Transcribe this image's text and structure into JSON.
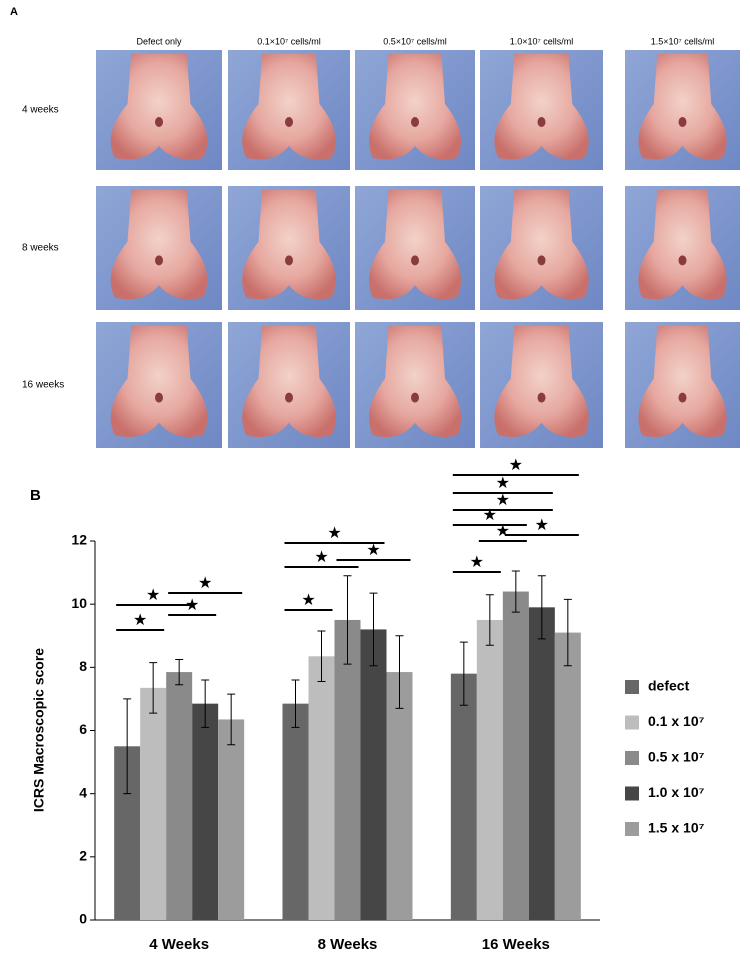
{
  "panel_a": {
    "label": "A",
    "columns": [
      "Defect only",
      "0.1×10⁷ cells/ml",
      "0.5×10⁷ cells/ml",
      "1.0×10⁷ cells/ml",
      "1.5×10⁷ cells/ml"
    ],
    "rows": [
      "4 weeks",
      "8 weeks",
      "16 weeks"
    ]
  },
  "chart_data": {
    "type": "bar",
    "panel_label": "B",
    "y_label": "ICRS Macroscopic score",
    "categories": [
      "4 Weeks",
      "8 Weeks",
      "16 Weeks"
    ],
    "series": [
      {
        "name": "defect",
        "color": "#676767",
        "values": [
          5.5,
          6.85,
          7.8
        ],
        "errors": [
          1.5,
          0.75,
          1.0
        ]
      },
      {
        "name": "0.1 x 10⁷",
        "color": "#bdbdbd",
        "values": [
          7.35,
          8.35,
          9.5
        ],
        "errors": [
          0.8,
          0.8,
          0.8
        ]
      },
      {
        "name": "0.5 x 10⁷",
        "color": "#8a8a8a",
        "values": [
          7.85,
          9.5,
          10.4
        ],
        "errors": [
          0.4,
          1.4,
          0.65
        ]
      },
      {
        "name": "1.0 x 10⁷",
        "color": "#464646",
        "values": [
          6.85,
          9.2,
          9.9
        ],
        "errors": [
          0.75,
          1.15,
          1.0
        ]
      },
      {
        "name": "1.5 x 10⁷",
        "color": "#9c9c9c",
        "values": [
          6.35,
          7.85,
          9.1
        ],
        "errors": [
          0.8,
          1.15,
          1.05
        ]
      }
    ],
    "ylim": [
      0,
      12
    ],
    "yticks": [
      0,
      2,
      4,
      6,
      8,
      10,
      12
    ],
    "legend": "right",
    "annotations": [
      {
        "text": "★",
        "group": "4 Weeks",
        "between": [
          "defect",
          "0.1 x 10⁷"
        ]
      },
      {
        "text": "★",
        "group": "4 Weeks",
        "between": [
          "defect",
          "0.5 x 10⁷"
        ]
      },
      {
        "text": "★",
        "group": "4 Weeks",
        "between": [
          "0.5 x 10⁷",
          "1.0 x 10⁷"
        ]
      },
      {
        "text": "★",
        "group": "4 Weeks",
        "between": [
          "0.5 x 10⁷",
          "1.5 x 10⁷"
        ]
      },
      {
        "text": "★",
        "group": "8 Weeks",
        "between": [
          "defect",
          "0.1 x 10⁷"
        ]
      },
      {
        "text": "★",
        "group": "8 Weeks",
        "between": [
          "defect",
          "0.5 x 10⁷"
        ]
      },
      {
        "text": "★",
        "group": "8 Weeks",
        "between": [
          "defect",
          "1.0 x 10⁷"
        ]
      },
      {
        "text": "★",
        "group": "8 Weeks",
        "between": [
          "0.5 x 10⁷",
          "1.5 x 10⁷"
        ]
      },
      {
        "text": "★",
        "group": "16 Weeks",
        "between": [
          "defect",
          "0.1 x 10⁷"
        ]
      },
      {
        "text": "★",
        "group": "16 Weeks",
        "between": [
          "0.1 x 10⁷",
          "0.5 x 10⁷"
        ]
      },
      {
        "text": "★",
        "group": "16 Weeks",
        "between": [
          "0.5 x 10⁷",
          "1.5 x 10⁷"
        ]
      },
      {
        "text": "★",
        "group": "16 Weeks",
        "between": [
          "defect",
          "0.5 x 10⁷"
        ]
      },
      {
        "text": "★",
        "group": "16 Weeks",
        "between": [
          "defect",
          "1.0 x 10⁷"
        ]
      },
      {
        "text": "★",
        "group": "16 Weeks",
        "between": [
          "defect",
          "1.0 x 10⁷"
        ]
      },
      {
        "text": "★",
        "group": "16 Weeks",
        "between": [
          "defect",
          "1.5 x 10⁷"
        ]
      }
    ]
  }
}
